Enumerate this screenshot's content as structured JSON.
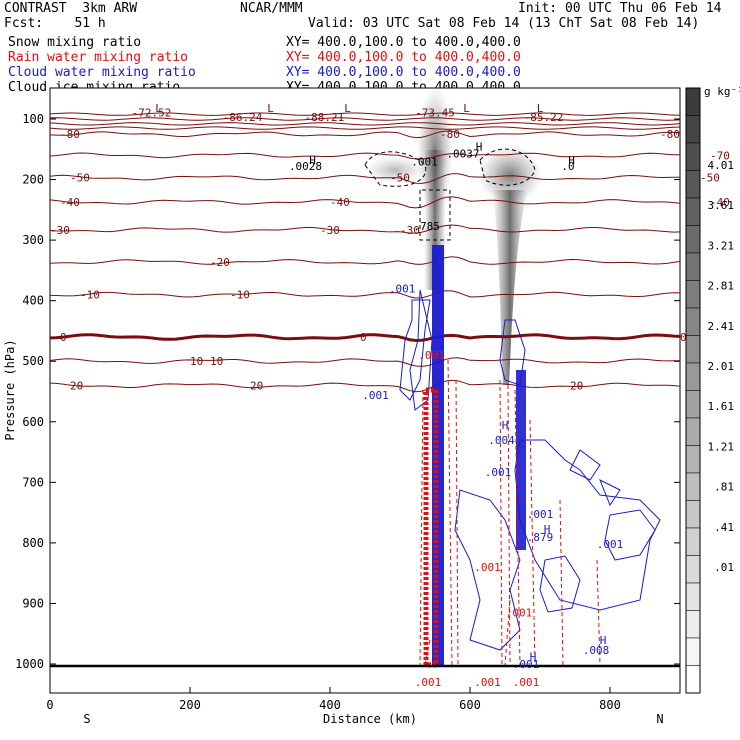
{
  "header": {
    "left1": "CONTRAST  3km ARW",
    "left2": "Fcst:    51 h",
    "center": "NCAR/MMM",
    "init": "Init: 00 UTC Thu 06 Feb 14",
    "valid": "Valid: 03 UTC Sat 08 Feb 14 (13 ChT Sat 08 Feb 14)"
  },
  "legend": [
    {
      "label": "Snow mixing ratio",
      "xy": "XY= 400.0,100.0 to 400.0,400.0",
      "color": "#000000"
    },
    {
      "label": "Rain water mixing ratio",
      "xy": "XY= 400.0,100.0 to 400.0,400.0",
      "color": "#e01010"
    },
    {
      "label": "Cloud water mixing ratio",
      "xy": "XY= 400.0,100.0 to 400.0,400.0",
      "color": "#1a1ad0"
    },
    {
      "label": "Cloud ice mixing ratio",
      "xy": "XY= 400.0,100.0 to 400.0,400.0",
      "color": "#000000"
    }
  ],
  "colorbar": {
    "unit": "g kg⁻¹",
    "labels": [
      "4.01",
      "3.61",
      "3.21",
      "2.81",
      "2.41",
      "2.01",
      "1.61",
      "1.21",
      ".81",
      ".41",
      ".01"
    ]
  },
  "chart_data": {
    "type": "contour",
    "xlabel": "Distance (km)",
    "ylabel": "Pressure (hPa)",
    "xlim": [
      0,
      900
    ],
    "ylim": [
      1050,
      50
    ],
    "xticks": [
      0,
      200,
      400,
      600,
      800
    ],
    "yticks": [
      100,
      200,
      300,
      400,
      500,
      600,
      700,
      800,
      900,
      1000
    ],
    "x_end_labels": [
      "S",
      "N"
    ],
    "temperature_contours": [
      {
        "p": 125,
        "label": "-80",
        "lx": [
          60,
          440,
          660
        ]
      },
      {
        "p": 160,
        "label": "-70",
        "lx": [
          710
        ]
      },
      {
        "p": 197,
        "label": "-50",
        "lx": [
          70,
          390,
          700
        ]
      },
      {
        "p": 237,
        "label": "-40",
        "lx": [
          60,
          330,
          710
        ]
      },
      {
        "p": 283,
        "label": "-30",
        "lx": [
          50,
          320,
          400,
          770
        ]
      },
      {
        "p": 336,
        "label": "-20",
        "lx": [
          210
        ]
      },
      {
        "p": 390,
        "label": "-10",
        "lx": [
          80,
          230,
          750
        ]
      },
      {
        "p": 460,
        "label": "0",
        "lx": [
          60,
          360,
          680
        ]
      },
      {
        "p": 500,
        "label": "10",
        "lx": [
          190,
          210
        ]
      },
      {
        "p": 540,
        "label": "20",
        "lx": [
          70,
          250,
          570
        ]
      }
    ],
    "temperature_labels": [
      {
        "text": "-72.52",
        "x": 145,
        "p": 89
      },
      {
        "text": "-86.24",
        "x": 275,
        "p": 97
      },
      {
        "text": "-88.21",
        "x": 392,
        "p": 97
      },
      {
        "text": "-73.45",
        "x": 550,
        "p": 89
      },
      {
        "text": "-85.22",
        "x": 705,
        "p": 97
      }
    ],
    "mixing_labels": [
      {
        "text": ".0028",
        "x": 365,
        "p": 178,
        "series": "snow"
      },
      {
        "text": ".0037",
        "x": 590,
        "p": 157,
        "series": "snow"
      },
      {
        "text": ".0",
        "x": 740,
        "p": 178,
        "series": "snow"
      },
      {
        "text": ".001",
        "x": 535,
        "p": 170,
        "series": "snow"
      },
      {
        "text": ".785",
        "x": 538,
        "p": 277,
        "series": "ice"
      },
      {
        "text": ".001",
        "x": 503,
        "p": 380,
        "series": "cloud"
      },
      {
        "text": ".001",
        "x": 465,
        "p": 556,
        "series": "cloud"
      },
      {
        "text": ".001",
        "x": 545,
        "p": 490,
        "series": "rain"
      },
      {
        "text": ".004",
        "x": 645,
        "p": 630,
        "series": "cloud"
      },
      {
        "text": ".001",
        "x": 640,
        "p": 683,
        "series": "cloud"
      },
      {
        "text": ".001",
        "x": 700,
        "p": 752,
        "series": "cloud"
      },
      {
        "text": ".879",
        "x": 700,
        "p": 790,
        "series": "cloud"
      },
      {
        "text": ".001",
        "x": 800,
        "p": 802,
        "series": "cloud"
      },
      {
        "text": ".001",
        "x": 625,
        "p": 840,
        "series": "rain"
      },
      {
        "text": ".001",
        "x": 670,
        "p": 915,
        "series": "rain"
      },
      {
        "text": ".008",
        "x": 780,
        "p": 977,
        "series": "cloud"
      },
      {
        "text": ".001",
        "x": 680,
        "p": 1000,
        "series": "cloud"
      },
      {
        "text": ".001",
        "x": 540,
        "p": 1030,
        "series": "rain"
      },
      {
        "text": ".001",
        "x": 625,
        "p": 1030,
        "series": "rain"
      },
      {
        "text": ".001",
        "x": 680,
        "p": 1030,
        "series": "rain"
      }
    ],
    "extrema_marks": [
      {
        "text": "L",
        "x": 155,
        "p": 82
      },
      {
        "text": "L",
        "x": 315,
        "p": 82
      },
      {
        "text": "L",
        "x": 425,
        "p": 82
      },
      {
        "text": "L",
        "x": 595,
        "p": 82
      },
      {
        "text": "L",
        "x": 700,
        "p": 82
      },
      {
        "text": "H",
        "x": 375,
        "p": 168
      },
      {
        "text": "H",
        "x": 613,
        "p": 145
      },
      {
        "text": "H",
        "x": 745,
        "p": 168
      },
      {
        "text": "H",
        "x": 650,
        "p": 605
      },
      {
        "text": "H",
        "x": 710,
        "p": 777
      },
      {
        "text": "H",
        "x": 790,
        "p": 960
      },
      {
        "text": "H",
        "x": 690,
        "p": 988
      }
    ]
  }
}
